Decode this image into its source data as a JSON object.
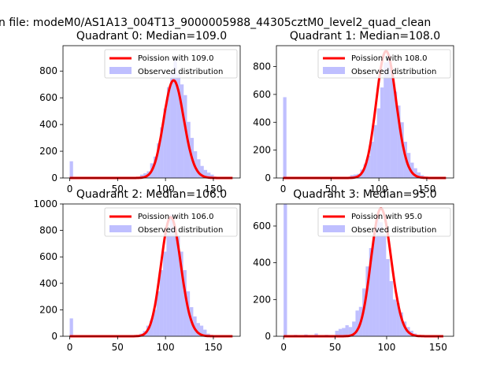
{
  "figure": {
    "suptitle": "n file: modeM0/AS1A13_004T13_9000005988_44305cztM0_level2_quad_clean"
  },
  "colors": {
    "poisson_line": "#ff0000",
    "observed_bar": "#8080ff",
    "axes": "#000000"
  },
  "chart_data": [
    {
      "type": "bar",
      "title": "Quadrant 0: Median=109.0",
      "median": 109.0,
      "xlim": [
        -7,
        178
      ],
      "ylim": [
        0,
        990
      ],
      "xticks": [
        0,
        50,
        100,
        150
      ],
      "yticks": [
        0,
        200,
        400,
        600,
        800
      ],
      "xlabel": "",
      "ylabel": "",
      "legend_position": "top-right",
      "series": [
        {
          "name": "Poission with 109.0",
          "kind": "line",
          "color": "#ff0000"
        },
        {
          "name": "Observed distribution",
          "kind": "histogram",
          "color": "#8080ff",
          "bins": [
            [
              0,
              3.5,
              125
            ],
            [
              3.5,
              7,
              0
            ],
            [
              70,
              73.5,
              8
            ],
            [
              73.5,
              77,
              25
            ],
            [
              77,
              80.5,
              35
            ],
            [
              80.5,
              84,
              50
            ],
            [
              84,
              87.5,
              110
            ],
            [
              87.5,
              91,
              160
            ],
            [
              91,
              94.5,
              260
            ],
            [
              94.5,
              98,
              380
            ],
            [
              98,
              101.5,
              520
            ],
            [
              101.5,
              105,
              680
            ],
            [
              105,
              108.5,
              790
            ],
            [
              108.5,
              112,
              890
            ],
            [
              112,
              115.5,
              780
            ],
            [
              115.5,
              119,
              700
            ],
            [
              119,
              122.5,
              620
            ],
            [
              122.5,
              126,
              420
            ],
            [
              126,
              129.5,
              300
            ],
            [
              129.5,
              133,
              200
            ],
            [
              133,
              136.5,
              140
            ],
            [
              136.5,
              140,
              90
            ],
            [
              140,
              143.5,
              60
            ],
            [
              143.5,
              147,
              40
            ],
            [
              147,
              150.5,
              25
            ],
            [
              150.5,
              154,
              10
            ],
            [
              154,
              157.5,
              5
            ]
          ]
        }
      ],
      "poisson_peak": 730,
      "poisson_range": [
        0,
        170
      ]
    },
    {
      "type": "bar",
      "title": "Quadrant 1: Median=108.0",
      "median": 108.0,
      "xlim": [
        -7,
        178
      ],
      "ylim": [
        0,
        950
      ],
      "xticks": [
        0,
        50,
        100,
        150
      ],
      "yticks": [
        0,
        200,
        400,
        600,
        800
      ],
      "xlabel": "",
      "ylabel": "",
      "legend_position": "top-right",
      "series": [
        {
          "name": "Poission with 108.0",
          "kind": "line",
          "color": "#ff0000"
        },
        {
          "name": "Observed distribution",
          "kind": "histogram",
          "color": "#8080ff",
          "bins": [
            [
              0,
              3.5,
              580
            ],
            [
              3.5,
              7,
              0
            ],
            [
              50,
              53.5,
              3
            ],
            [
              60,
              63.5,
              5
            ],
            [
              70,
              73.5,
              20
            ],
            [
              73.5,
              77,
              25
            ],
            [
              77,
              80.5,
              30
            ],
            [
              80.5,
              84,
              60
            ],
            [
              84,
              87.5,
              100
            ],
            [
              87.5,
              91,
              160
            ],
            [
              91,
              94.5,
              260
            ],
            [
              94.5,
              98,
              380
            ],
            [
              98,
              101.5,
              500
            ],
            [
              101.5,
              105,
              650
            ],
            [
              105,
              108.5,
              830
            ],
            [
              108.5,
              112,
              890
            ],
            [
              112,
              115.5,
              750
            ],
            [
              115.5,
              119,
              620
            ],
            [
              119,
              122.5,
              520
            ],
            [
              122.5,
              126,
              400
            ],
            [
              126,
              129.5,
              260
            ],
            [
              129.5,
              133,
              180
            ],
            [
              133,
              136.5,
              110
            ],
            [
              136.5,
              140,
              70
            ],
            [
              140,
              143.5,
              40
            ],
            [
              143.5,
              147,
              20
            ],
            [
              147,
              150.5,
              10
            ]
          ]
        }
      ],
      "poisson_peak": 910,
      "poisson_range": [
        0,
        170
      ]
    },
    {
      "type": "bar",
      "title": "Quadrant 2: Median=106.0",
      "median": 106.0,
      "xlim": [
        -7,
        178
      ],
      "ylim": [
        0,
        1000
      ],
      "xticks": [
        0,
        50,
        100,
        150
      ],
      "yticks": [
        0,
        200,
        400,
        600,
        800,
        1000
      ],
      "xlabel": "",
      "ylabel": "",
      "legend_position": "top-right",
      "series": [
        {
          "name": "Poission with 106.0",
          "kind": "line",
          "color": "#ff0000"
        },
        {
          "name": "Observed distribution",
          "kind": "histogram",
          "color": "#8080ff",
          "bins": [
            [
              0,
              3.5,
              135
            ],
            [
              3.5,
              7,
              0
            ],
            [
              66,
              69.5,
              8
            ],
            [
              69.5,
              73,
              10
            ],
            [
              73,
              76.5,
              20
            ],
            [
              76.5,
              80,
              40
            ],
            [
              80,
              83.5,
              80
            ],
            [
              83.5,
              87,
              120
            ],
            [
              87,
              90.5,
              200
            ],
            [
              90.5,
              94,
              340
            ],
            [
              94,
              97.5,
              500
            ],
            [
              97.5,
              101,
              640
            ],
            [
              101,
              104.5,
              780
            ],
            [
              104.5,
              108,
              920
            ],
            [
              108,
              111.5,
              820
            ],
            [
              111.5,
              115,
              760
            ],
            [
              115,
              118.5,
              640
            ],
            [
              118.5,
              122,
              500
            ],
            [
              122,
              125.5,
              340
            ],
            [
              125.5,
              129,
              220
            ],
            [
              129,
              132.5,
              150
            ],
            [
              132.5,
              136,
              100
            ],
            [
              136,
              139.5,
              80
            ],
            [
              139.5,
              143,
              50
            ],
            [
              143,
              146.5,
              20
            ],
            [
              146.5,
              150,
              10
            ]
          ]
        }
      ],
      "poisson_peak": 900,
      "poisson_range": [
        0,
        170
      ]
    },
    {
      "type": "bar",
      "title": "Quadrant 3: Median=95.0",
      "median": 95.0,
      "xlim": [
        -7,
        165
      ],
      "ylim": [
        0,
        720
      ],
      "xticks": [
        0,
        50,
        100,
        150
      ],
      "yticks": [
        0,
        200,
        400,
        600
      ],
      "xlabel": "",
      "ylabel": "",
      "legend_position": "top-right",
      "series": [
        {
          "name": "Poission with 95.0",
          "kind": "line",
          "color": "#ff0000"
        },
        {
          "name": "Observed distribution",
          "kind": "histogram",
          "color": "#8080ff",
          "bins": [
            [
              0,
              3.3,
              720
            ],
            [
              3.3,
              6.6,
              5
            ],
            [
              10,
              13.3,
              8
            ],
            [
              20,
              23.3,
              10
            ],
            [
              30,
              33.3,
              15
            ],
            [
              40,
              43.3,
              8
            ],
            [
              50,
              53.3,
              30
            ],
            [
              53.3,
              56.6,
              40
            ],
            [
              56.6,
              59.9,
              45
            ],
            [
              59.9,
              63.2,
              60
            ],
            [
              63.2,
              66.5,
              50
            ],
            [
              66.5,
              69.8,
              80
            ],
            [
              69.8,
              73.1,
              140
            ],
            [
              73.1,
              76.4,
              160
            ],
            [
              76.4,
              79.7,
              260
            ],
            [
              79.7,
              83,
              380
            ],
            [
              83,
              86.3,
              480
            ],
            [
              86.3,
              89.6,
              540
            ],
            [
              89.6,
              92.9,
              660
            ],
            [
              92.9,
              96.2,
              620
            ],
            [
              96.2,
              99.5,
              560
            ],
            [
              99.5,
              102.8,
              420
            ],
            [
              102.8,
              106.1,
              300
            ],
            [
              106.1,
              109.4,
              200
            ],
            [
              109.4,
              112.7,
              180
            ],
            [
              112.7,
              116,
              130
            ],
            [
              116,
              119.3,
              80
            ],
            [
              119.3,
              122.6,
              50
            ],
            [
              122.6,
              125.9,
              30
            ],
            [
              125.9,
              129.2,
              15
            ]
          ]
        }
      ],
      "poisson_peak": 695,
      "poisson_range": [
        0,
        155
      ]
    }
  ]
}
